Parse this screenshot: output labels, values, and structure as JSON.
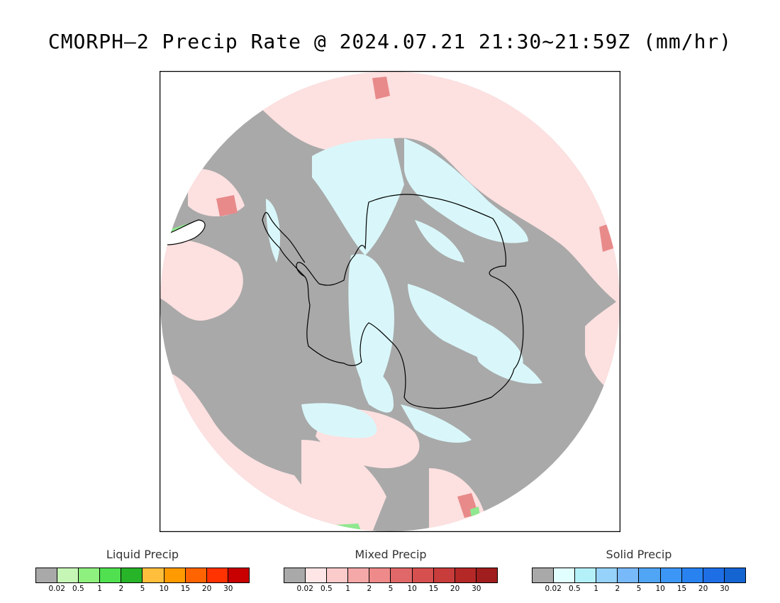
{
  "title": "CMORPH–2 Precip Rate @ 2024.07.21 21:30~21:59Z (mm/hr)",
  "map": {
    "projection": "south-polar-stereographic",
    "colors": {
      "missing_gray": "#a9a9a9",
      "mixed_light": "#fde0e0",
      "mixed_mid": "#f2a8a8",
      "mixed_heavy": "#d85858",
      "solid_light": "#d9f7fa",
      "coastline": "#000000",
      "liquid_light": "#8fe88f"
    }
  },
  "legends": [
    {
      "title": "Liquid Precip",
      "ticks": [
        "0.02",
        "0.5",
        "1",
        "2",
        "5",
        "10",
        "15",
        "20",
        "30"
      ],
      "colors": [
        "#a9a9a9",
        "#c6f6b6",
        "#8ef07e",
        "#50e050",
        "#28b428",
        "#ffbe3c",
        "#ff9a00",
        "#ff6400",
        "#ff3200",
        "#c80000"
      ]
    },
    {
      "title": "Mixed Precip",
      "ticks": [
        "0.02",
        "0.5",
        "1",
        "2",
        "5",
        "10",
        "15",
        "20",
        "30"
      ],
      "colors": [
        "#a9a9a9",
        "#ffe6e6",
        "#fbcaca",
        "#f4a8a8",
        "#ee8a8a",
        "#e06868",
        "#d65050",
        "#c83c3c",
        "#b42828",
        "#a01e1e"
      ]
    },
    {
      "title": "Solid Precip",
      "ticks": [
        "0.02",
        "0.5",
        "1",
        "2",
        "5",
        "10",
        "15",
        "20",
        "30"
      ],
      "colors": [
        "#a9a9a9",
        "#e2ffff",
        "#b4f0f8",
        "#96d2fa",
        "#78b9fa",
        "#50a5f5",
        "#3c96f5",
        "#2882f0",
        "#1e6ee6",
        "#1464d2"
      ]
    }
  ]
}
